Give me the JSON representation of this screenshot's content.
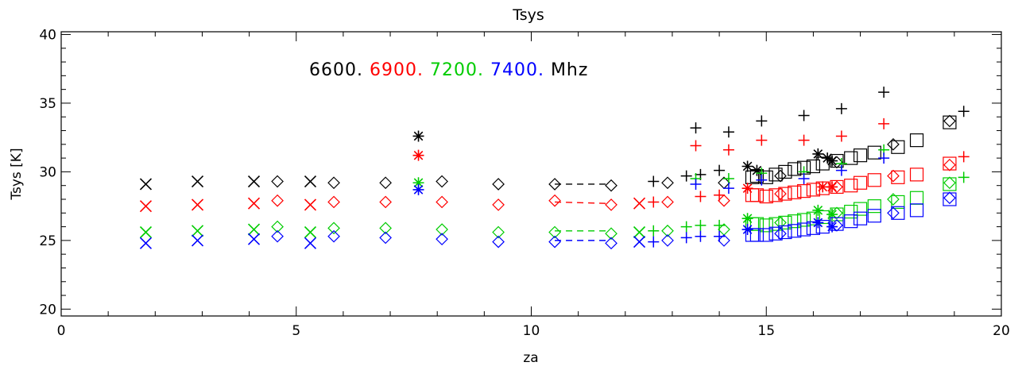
{
  "chart_data": {
    "type": "scatter",
    "title": "Tsys",
    "xlabel": "za",
    "ylabel": "Tsys [K]",
    "xlim": [
      0,
      20
    ],
    "ylim": [
      19.5,
      40.2
    ],
    "grid": false,
    "legend": {
      "placement": "top-left",
      "suffix": "Mhz",
      "entries": [
        "6600.",
        "6900.",
        "7200.",
        "7400."
      ]
    },
    "x_ticks": [
      "0",
      "5",
      "10",
      "15",
      "20"
    ],
    "y_ticks": [
      "20",
      "25",
      "30",
      "35",
      "40"
    ],
    "colors": [
      "#000000",
      "#ff0000",
      "#00cc00",
      "#0000ff"
    ],
    "series": [
      {
        "name": "6600.",
        "color": "#000000",
        "x_points": [
          [
            1.8,
            29.1
          ],
          [
            2.9,
            29.3
          ],
          [
            4.1,
            29.3
          ],
          [
            5.3,
            29.3
          ]
        ],
        "star_points": [
          [
            7.6,
            32.6
          ],
          [
            14.6,
            30.4
          ],
          [
            14.8,
            30.1
          ],
          [
            16.1,
            31.3
          ],
          [
            16.3,
            31.0
          ],
          [
            16.4,
            30.8
          ]
        ],
        "diamond_points": [
          [
            4.6,
            29.3
          ],
          [
            5.8,
            29.2
          ],
          [
            6.9,
            29.2
          ],
          [
            8.1,
            29.3
          ],
          [
            9.3,
            29.1
          ],
          [
            10.5,
            29.1
          ],
          [
            11.7,
            29.0
          ],
          [
            12.9,
            29.2
          ],
          [
            14.1,
            29.2
          ],
          [
            15.3,
            29.7
          ],
          [
            16.5,
            30.7
          ],
          [
            17.7,
            32.0
          ],
          [
            18.9,
            33.7
          ]
        ],
        "plus_points": [
          [
            12.6,
            29.3
          ],
          [
            13.3,
            29.7
          ],
          [
            13.5,
            33.2
          ],
          [
            13.6,
            29.8
          ],
          [
            14.0,
            30.1
          ],
          [
            14.2,
            32.9
          ],
          [
            14.9,
            33.7
          ],
          [
            15.8,
            34.1
          ],
          [
            16.6,
            34.6
          ],
          [
            17.5,
            35.8
          ],
          [
            19.2,
            34.4
          ]
        ],
        "square_points": [
          [
            14.7,
            29.6
          ],
          [
            14.8,
            29.7
          ],
          [
            15.0,
            29.6
          ],
          [
            15.2,
            29.8
          ],
          [
            15.4,
            30.0
          ],
          [
            15.6,
            30.2
          ],
          [
            15.8,
            30.3
          ],
          [
            16.0,
            30.4
          ],
          [
            16.2,
            30.6
          ],
          [
            16.5,
            30.8
          ],
          [
            16.8,
            31.0
          ],
          [
            17.0,
            31.2
          ],
          [
            17.3,
            31.4
          ],
          [
            17.8,
            31.8
          ],
          [
            18.2,
            32.3
          ],
          [
            18.9,
            33.6
          ]
        ],
        "dash_segment": [
          [
            10.5,
            29.1
          ],
          [
            11.6,
            29.1
          ]
        ]
      },
      {
        "name": "6900.",
        "color": "#ff0000",
        "x_points": [
          [
            1.8,
            27.5
          ],
          [
            2.9,
            27.6
          ],
          [
            4.1,
            27.7
          ],
          [
            5.3,
            27.6
          ],
          [
            12.3,
            27.7
          ]
        ],
        "star_points": [
          [
            7.6,
            31.2
          ],
          [
            14.6,
            28.8
          ],
          [
            16.2,
            28.9
          ],
          [
            16.4,
            28.9
          ]
        ],
        "diamond_points": [
          [
            4.6,
            27.9
          ],
          [
            5.8,
            27.8
          ],
          [
            6.9,
            27.8
          ],
          [
            8.1,
            27.8
          ],
          [
            9.3,
            27.6
          ],
          [
            10.5,
            27.9
          ],
          [
            11.7,
            27.6
          ],
          [
            12.9,
            27.8
          ],
          [
            14.1,
            27.9
          ],
          [
            15.3,
            28.4
          ],
          [
            16.5,
            28.9
          ],
          [
            17.7,
            29.7
          ],
          [
            18.9,
            30.5
          ]
        ],
        "plus_points": [
          [
            12.6,
            27.8
          ],
          [
            13.5,
            31.9
          ],
          [
            13.6,
            28.2
          ],
          [
            14.0,
            28.3
          ],
          [
            14.2,
            31.6
          ],
          [
            14.9,
            32.3
          ],
          [
            15.8,
            32.3
          ],
          [
            16.6,
            32.6
          ],
          [
            17.5,
            33.5
          ],
          [
            19.2,
            31.1
          ]
        ],
        "square_points": [
          [
            14.7,
            28.3
          ],
          [
            14.8,
            28.3
          ],
          [
            15.0,
            28.2
          ],
          [
            15.2,
            28.3
          ],
          [
            15.4,
            28.4
          ],
          [
            15.6,
            28.5
          ],
          [
            15.8,
            28.6
          ],
          [
            16.0,
            28.7
          ],
          [
            16.2,
            28.8
          ],
          [
            16.5,
            28.9
          ],
          [
            16.8,
            29.0
          ],
          [
            17.0,
            29.2
          ],
          [
            17.3,
            29.4
          ],
          [
            17.8,
            29.6
          ],
          [
            18.2,
            29.8
          ],
          [
            18.9,
            30.6
          ]
        ],
        "dash_segment": [
          [
            10.5,
            27.8
          ],
          [
            11.6,
            27.7
          ]
        ]
      },
      {
        "name": "7200.",
        "color": "#00cc00",
        "x_points": [
          [
            1.8,
            25.6
          ],
          [
            2.9,
            25.7
          ],
          [
            4.1,
            25.8
          ],
          [
            5.3,
            25.6
          ],
          [
            12.3,
            25.6
          ]
        ],
        "star_points": [
          [
            7.6,
            29.2
          ],
          [
            14.6,
            26.6
          ],
          [
            16.1,
            27.2
          ],
          [
            16.4,
            26.9
          ]
        ],
        "diamond_points": [
          [
            4.6,
            26.0
          ],
          [
            5.8,
            25.9
          ],
          [
            6.9,
            25.9
          ],
          [
            8.1,
            25.8
          ],
          [
            9.3,
            25.6
          ],
          [
            10.5,
            25.6
          ],
          [
            11.7,
            25.5
          ],
          [
            12.9,
            25.7
          ],
          [
            14.1,
            25.8
          ],
          [
            15.3,
            26.3
          ],
          [
            16.5,
            27.0
          ],
          [
            17.7,
            28.0
          ],
          [
            18.9,
            29.2
          ]
        ],
        "plus_points": [
          [
            12.6,
            25.7
          ],
          [
            13.3,
            26.0
          ],
          [
            13.5,
            29.5
          ],
          [
            13.6,
            26.1
          ],
          [
            14.0,
            26.1
          ],
          [
            14.2,
            29.5
          ],
          [
            14.9,
            29.9
          ],
          [
            15.8,
            30.0
          ],
          [
            16.6,
            30.6
          ],
          [
            17.5,
            31.6
          ],
          [
            19.2,
            29.6
          ]
        ],
        "square_points": [
          [
            14.7,
            26.2
          ],
          [
            14.8,
            26.2
          ],
          [
            15.0,
            26.1
          ],
          [
            15.2,
            26.2
          ],
          [
            15.4,
            26.3
          ],
          [
            15.6,
            26.4
          ],
          [
            15.8,
            26.5
          ],
          [
            16.0,
            26.6
          ],
          [
            16.2,
            26.7
          ],
          [
            16.5,
            26.9
          ],
          [
            16.8,
            27.1
          ],
          [
            17.0,
            27.3
          ],
          [
            17.3,
            27.5
          ],
          [
            17.8,
            27.8
          ],
          [
            18.2,
            28.1
          ],
          [
            18.9,
            29.1
          ]
        ],
        "dash_segment": [
          [
            10.5,
            25.7
          ],
          [
            11.6,
            25.7
          ]
        ]
      },
      {
        "name": "7400.",
        "color": "#0000ff",
        "x_points": [
          [
            1.8,
            24.8
          ],
          [
            2.9,
            25.0
          ],
          [
            4.1,
            25.1
          ],
          [
            5.3,
            24.8
          ],
          [
            12.3,
            24.9
          ]
        ],
        "star_points": [
          [
            7.6,
            28.7
          ],
          [
            14.6,
            25.8
          ],
          [
            16.1,
            26.3
          ],
          [
            16.4,
            26.0
          ]
        ],
        "diamond_points": [
          [
            4.6,
            25.3
          ],
          [
            5.8,
            25.3
          ],
          [
            6.9,
            25.2
          ],
          [
            8.1,
            25.1
          ],
          [
            9.3,
            24.9
          ],
          [
            10.5,
            24.9
          ],
          [
            11.7,
            24.8
          ],
          [
            12.9,
            25.0
          ],
          [
            14.1,
            25.0
          ],
          [
            15.3,
            25.5
          ],
          [
            16.5,
            26.1
          ],
          [
            17.7,
            27.0
          ],
          [
            18.9,
            28.1
          ]
        ],
        "plus_points": [
          [
            12.6,
            24.9
          ],
          [
            13.3,
            25.2
          ],
          [
            13.5,
            29.1
          ],
          [
            13.6,
            25.3
          ],
          [
            14.0,
            25.3
          ],
          [
            14.2,
            28.8
          ],
          [
            14.9,
            29.4
          ],
          [
            15.8,
            29.5
          ],
          [
            16.6,
            30.1
          ],
          [
            17.5,
            31.0
          ]
        ],
        "square_points": [
          [
            14.7,
            25.4
          ],
          [
            14.8,
            25.4
          ],
          [
            15.0,
            25.4
          ],
          [
            15.2,
            25.5
          ],
          [
            15.4,
            25.6
          ],
          [
            15.6,
            25.7
          ],
          [
            15.8,
            25.8
          ],
          [
            16.0,
            25.9
          ],
          [
            16.2,
            26.0
          ],
          [
            16.5,
            26.2
          ],
          [
            16.8,
            26.4
          ],
          [
            17.0,
            26.6
          ],
          [
            17.3,
            26.8
          ],
          [
            17.8,
            27.0
          ],
          [
            18.2,
            27.2
          ],
          [
            18.9,
            28.0
          ]
        ],
        "dash_segment": [
          [
            10.5,
            25.0
          ],
          [
            11.6,
            25.0
          ]
        ]
      }
    ]
  }
}
